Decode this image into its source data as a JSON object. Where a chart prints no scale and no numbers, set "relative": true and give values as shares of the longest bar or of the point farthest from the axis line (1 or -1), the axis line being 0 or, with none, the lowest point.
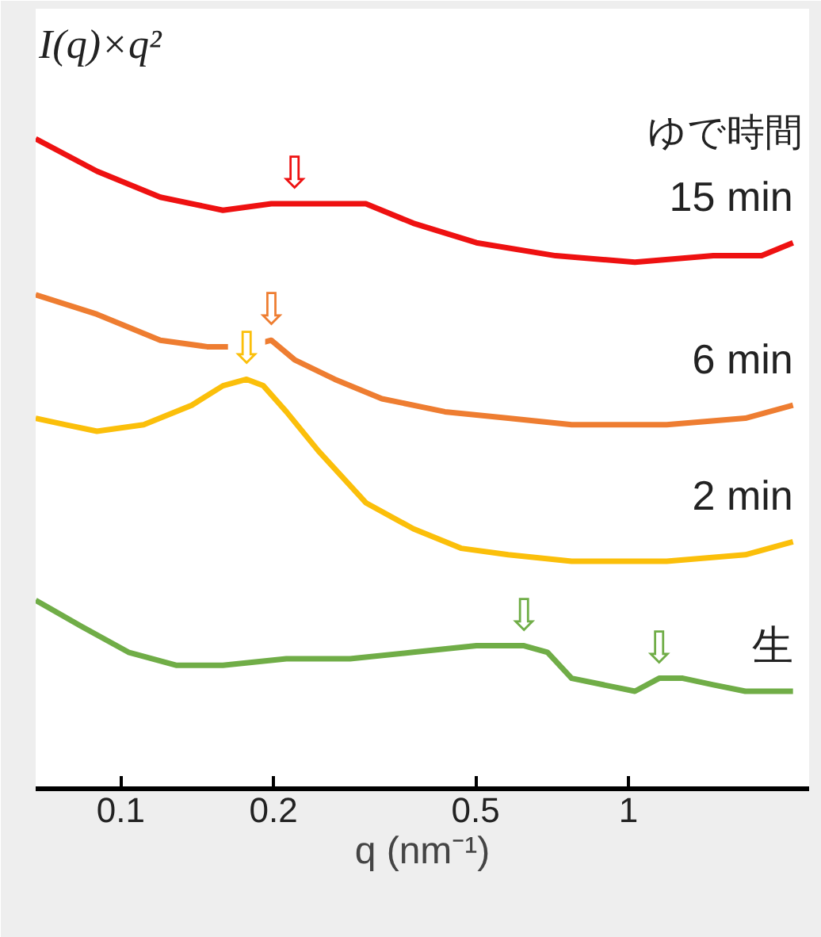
{
  "chart_data": {
    "type": "line",
    "relative": true,
    "log": "x",
    "xlabel": "q (nm⁻¹)",
    "ylabel": "I(q)×q²",
    "legend_title": "ゆで時間",
    "xlim": [
      0.068,
      2.27
    ],
    "xticks": [
      0.1,
      0.2,
      0.5,
      1
    ],
    "grid": false,
    "series": [
      {
        "name": "15 min",
        "color": "#ee1111",
        "x": [
          0.068,
          0.0898,
          0.1197,
          0.159,
          0.198,
          0.22,
          0.264,
          0.304,
          0.377,
          0.502,
          0.719,
          1.03,
          1.47,
          1.83,
          2.11
        ],
        "values": [
          1.0,
          0.95,
          0.91,
          0.89,
          0.9,
          0.9,
          0.9,
          0.9,
          0.87,
          0.84,
          0.82,
          0.81,
          0.82,
          0.82,
          0.84
        ]
      },
      {
        "name": "6 min",
        "color": "#ee7d31",
        "x": [
          0.068,
          0.0898,
          0.1197,
          0.148,
          0.177,
          0.198,
          0.22,
          0.264,
          0.327,
          0.435,
          0.58,
          0.773,
          1.19,
          1.7,
          2.11
        ],
        "values": [
          0.76,
          0.73,
          0.69,
          0.68,
          0.68,
          0.69,
          0.66,
          0.63,
          0.6,
          0.58,
          0.57,
          0.56,
          0.56,
          0.57,
          0.59
        ]
      },
      {
        "name": "2 min",
        "color": "#fbbf0a",
        "x": [
          0.068,
          0.078,
          0.0898,
          0.111,
          0.138,
          0.159,
          0.177,
          0.191,
          0.212,
          0.245,
          0.304,
          0.377,
          0.468,
          0.58,
          0.773,
          1.19,
          1.7,
          2.11
        ],
        "values": [
          0.57,
          0.56,
          0.55,
          0.56,
          0.59,
          0.62,
          0.63,
          0.62,
          0.58,
          0.52,
          0.44,
          0.4,
          0.37,
          0.36,
          0.35,
          0.35,
          0.36,
          0.38
        ]
      },
      {
        "name": "生",
        "color": "#70ad47",
        "x": [
          0.068,
          0.0836,
          0.1036,
          0.1285,
          0.159,
          0.212,
          0.283,
          0.377,
          0.502,
          0.623,
          0.693,
          0.773,
          0.892,
          1.03,
          1.15,
          1.28,
          1.47,
          1.7,
          2.11
        ],
        "values": [
          0.29,
          0.25,
          0.21,
          0.19,
          0.19,
          0.2,
          0.2,
          0.21,
          0.22,
          0.22,
          0.21,
          0.17,
          0.16,
          0.15,
          0.17,
          0.17,
          0.16,
          0.15,
          0.15
        ]
      }
    ],
    "annotations": [
      {
        "text": "⇩",
        "x": 0.22,
        "y": 0.9
      },
      {
        "text": "⇩",
        "x": 0.198,
        "y": 0.69
      },
      {
        "text": "⇩",
        "x": 0.177,
        "y": 0.63
      },
      {
        "text": "⇩",
        "x": 0.623,
        "y": 0.22
      },
      {
        "text": "⇩",
        "x": 1.15,
        "y": 0.17
      }
    ]
  }
}
